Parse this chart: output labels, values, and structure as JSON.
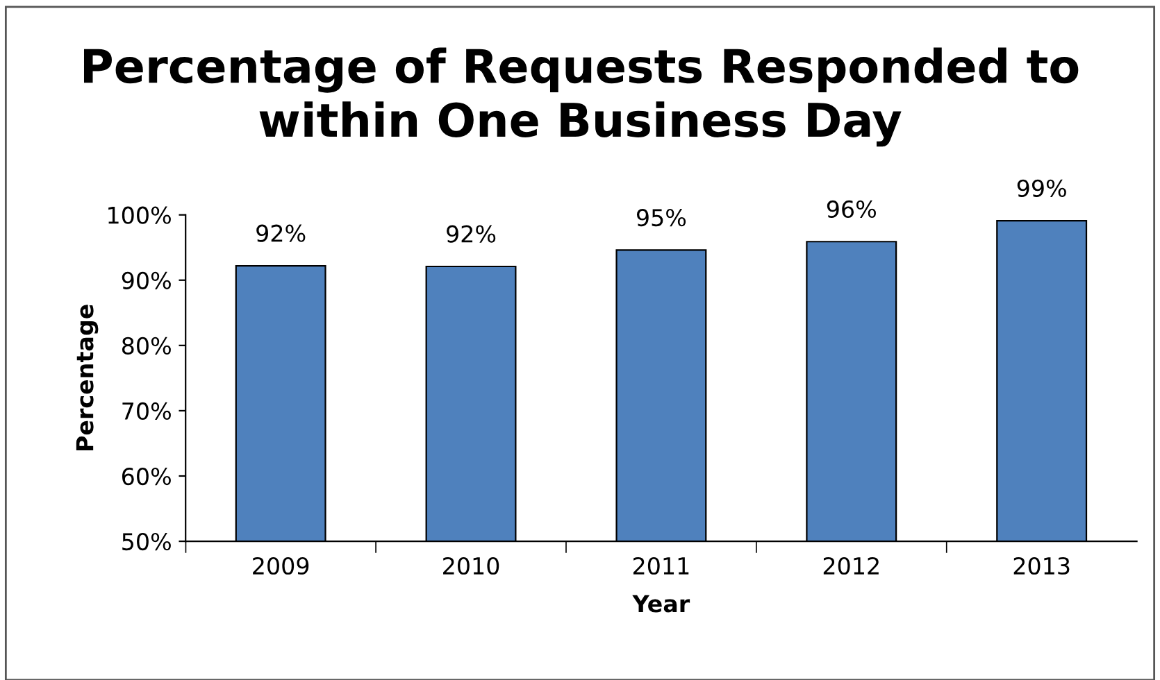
{
  "chart_data": {
    "type": "bar",
    "title": "Percentage of Requests Responded to\nwithin One Business Day",
    "xlabel": "Year",
    "ylabel": "Percentage",
    "categories": [
      "2009",
      "2010",
      "2011",
      "2012",
      "2013"
    ],
    "series": [
      {
        "color": "#4f81bd",
        "values": [
          92.2,
          92.1,
          94.6,
          95.9,
          99.1
        ],
        "value_labels": [
          "92%",
          "92%",
          "95%",
          "96%",
          "99%"
        ]
      }
    ],
    "ylim": [
      50,
      100
    ],
    "yticks": [
      {
        "value": 50,
        "label": "50%"
      },
      {
        "value": 60,
        "label": "60%"
      },
      {
        "value": 70,
        "label": "70%"
      },
      {
        "value": 80,
        "label": "80%"
      },
      {
        "value": 90,
        "label": "90%"
      },
      {
        "value": 100,
        "label": "100%"
      }
    ],
    "grid": false,
    "legend": false
  }
}
